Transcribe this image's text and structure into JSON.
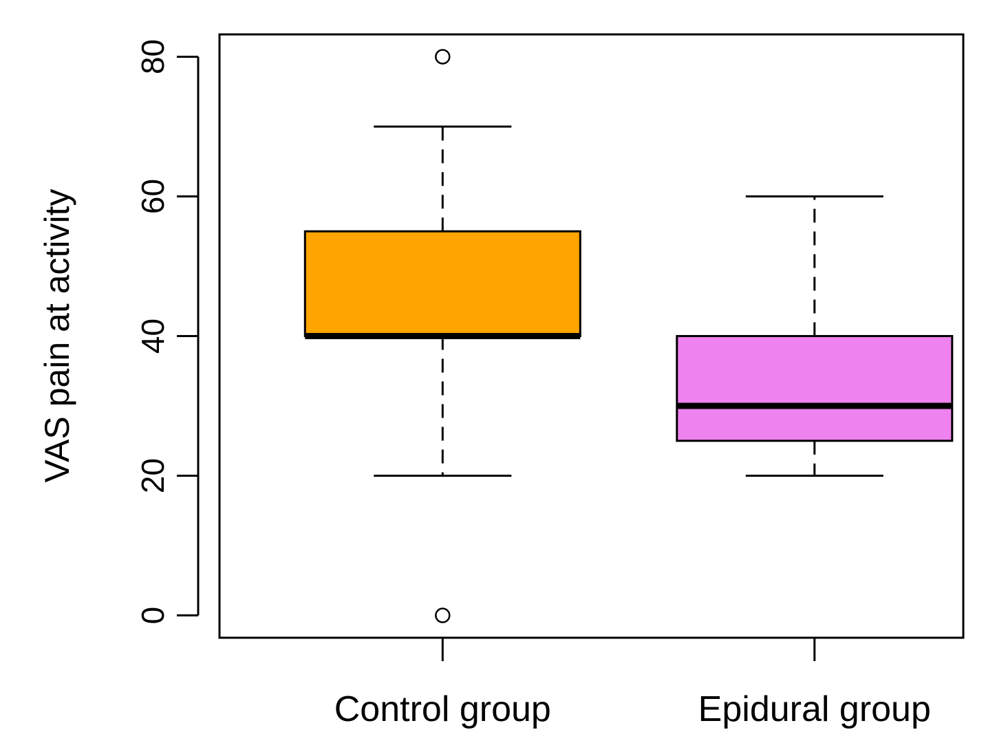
{
  "chart_data": {
    "type": "boxplot",
    "title": "",
    "xlabel": "",
    "ylabel": "VAS pain at activity",
    "ylim": [
      -3.2,
      83.2
    ],
    "yticks": [
      0,
      20,
      40,
      60,
      80
    ],
    "ytick_labels": [
      "0",
      "20",
      "40",
      "60",
      "80"
    ],
    "categories": [
      "Control group",
      "Epidural group"
    ],
    "boxes": [
      {
        "name": "Control group",
        "color": "#FFA500",
        "whisker_low": 20,
        "q1": 40,
        "median": 40,
        "q3": 55,
        "whisker_high": 70,
        "outliers": [
          80,
          0
        ]
      },
      {
        "name": "Epidural group",
        "color": "#EE82EE",
        "whisker_low": 20,
        "q1": 25,
        "median": 30,
        "q3": 40,
        "whisker_high": 60,
        "outliers": []
      }
    ],
    "grid": false,
    "legend": "none"
  }
}
